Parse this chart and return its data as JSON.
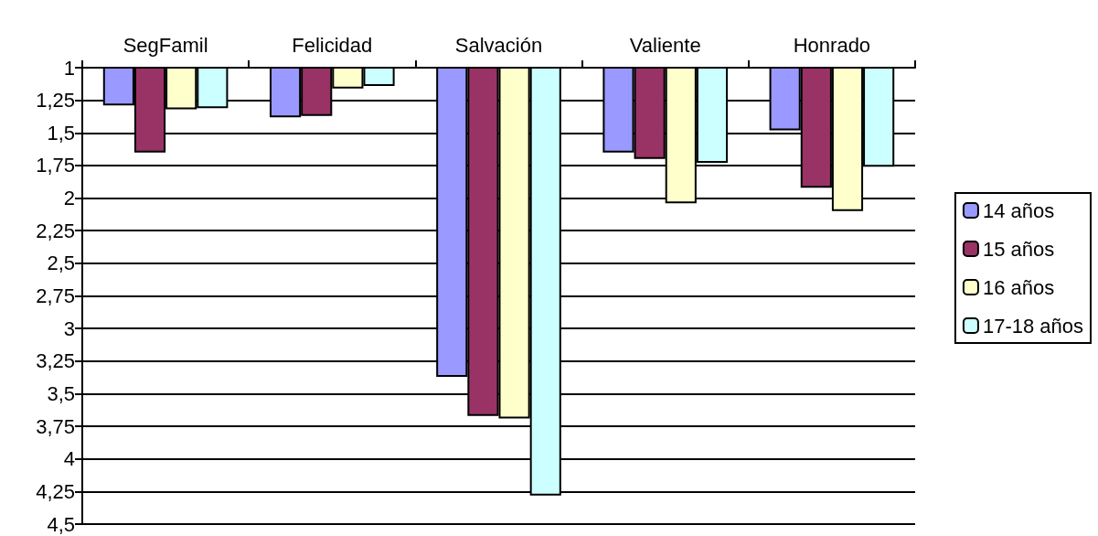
{
  "chart_data": {
    "type": "bar",
    "categories": [
      "SegFamil",
      "Felicidad",
      "Salvación",
      "Valiente",
      "Honrado"
    ],
    "series": [
      {
        "name": "14 años",
        "color": "#9999ff",
        "values": [
          1.29,
          1.38,
          3.37,
          1.65,
          1.48
        ]
      },
      {
        "name": "15 años",
        "color": "#993366",
        "values": [
          1.65,
          1.37,
          3.67,
          1.7,
          1.92
        ]
      },
      {
        "name": "16 años",
        "color": "#ffffcc",
        "values": [
          1.32,
          1.16,
          3.69,
          2.04,
          2.1
        ]
      },
      {
        "name": "17-18 años",
        "color": "#ccffff",
        "values": [
          1.31,
          1.14,
          4.28,
          1.73,
          1.76
        ]
      }
    ],
    "ylim": [
      4.5,
      1
    ],
    "yticks": [
      1,
      {
        "value": 1.25,
        "label": "1,25"
      },
      {
        "value": 1.5,
        "label": "1,5"
      },
      {
        "value": 1.75,
        "label": "1,75"
      },
      2,
      {
        "value": 2.25,
        "label": "2,25"
      },
      {
        "value": 2.5,
        "label": "2,5"
      },
      {
        "value": 2.75,
        "label": "2,75"
      },
      3,
      {
        "value": 3.25,
        "label": "3,25"
      },
      {
        "value": 3.5,
        "label": "3,5"
      },
      {
        "value": 3.75,
        "label": "3,75"
      },
      4,
      {
        "value": 4.25,
        "label": "4,25"
      },
      {
        "value": 4.5,
        "label": "4,5"
      }
    ],
    "grid": "y",
    "legend": "right"
  }
}
